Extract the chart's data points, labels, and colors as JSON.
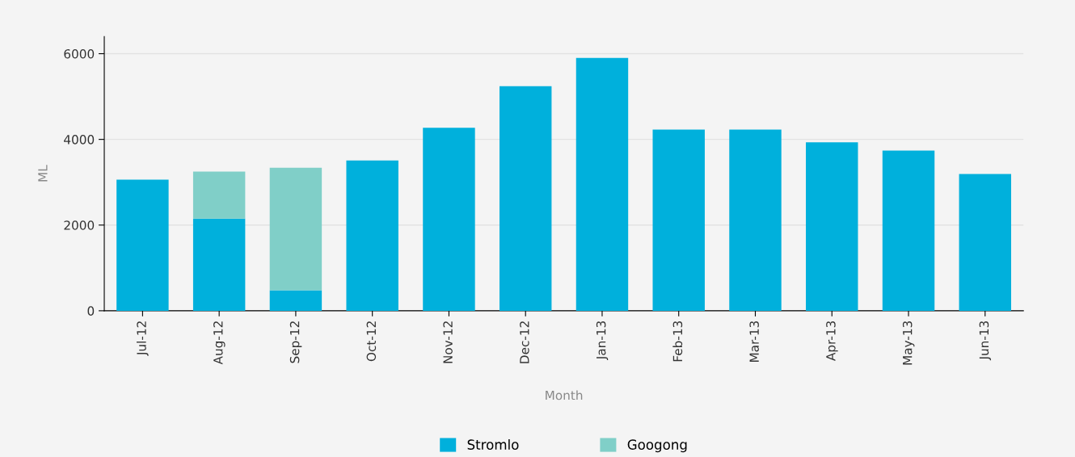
{
  "chart_data": {
    "type": "bar",
    "stacked": true,
    "xlabel": "Month",
    "ylabel": "ML",
    "categories": [
      "Jul-12",
      "Aug-12",
      "Sep-12",
      "Oct-12",
      "Nov-12",
      "Dec-12",
      "Jan-13",
      "Feb-13",
      "Mar-13",
      "Apr-13",
      "May-13",
      "Jun-13"
    ],
    "series": [
      {
        "name": "Stromlo",
        "color": "#00b0dc",
        "values": [
          3060,
          2150,
          480,
          3510,
          4270,
          5240,
          5900,
          4230,
          4230,
          3930,
          3740,
          3190
        ]
      },
      {
        "name": "Googong",
        "color": "#80cfc8",
        "values": [
          0,
          1100,
          2860,
          0,
          0,
          0,
          0,
          0,
          0,
          0,
          0,
          0
        ]
      }
    ],
    "ylim": [
      0,
      6400
    ],
    "yticks": [
      0,
      2000,
      4000,
      6000
    ],
    "grid": "y",
    "legend": "bottom"
  }
}
